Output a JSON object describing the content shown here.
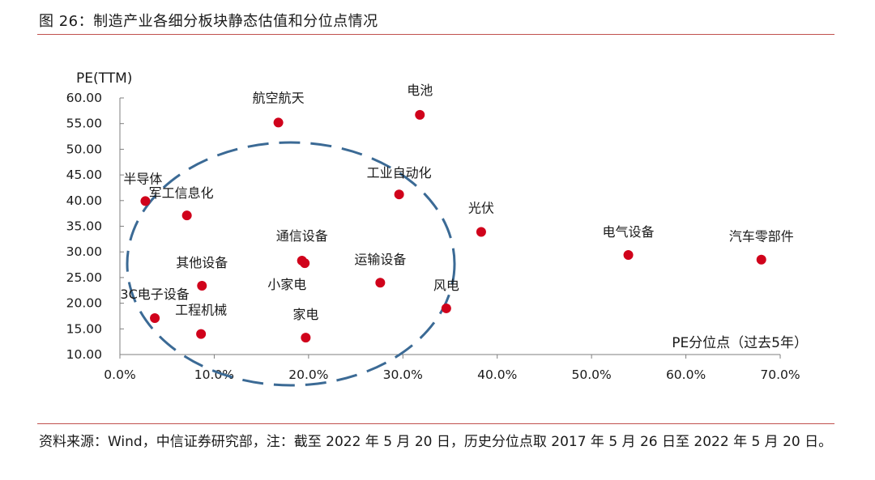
{
  "figure": {
    "title": "图 26：制造产业各细分板块静态估值和分位点情况",
    "source_note": "资料来源：Wind，中信证券研究部，注：截至 2022 年 5 月 20 日，历史分位点取 2017 年 5 月 26 日至 2022 年 5 月 20 日。"
  },
  "colors": {
    "point": "#d0021b",
    "ellipse": "#3b6a95",
    "rule": "#c0504d",
    "axis": "#7f7f7f"
  },
  "chart_data": {
    "type": "scatter",
    "xlabel": "PE分位点（过去5年）",
    "ylabel": "PE(TTM)",
    "xlim": [
      0,
      0.7
    ],
    "ylim": [
      10,
      60
    ],
    "x_ticks": [
      0.0,
      0.1,
      0.2,
      0.3,
      0.4,
      0.5,
      0.6,
      0.7
    ],
    "x_tick_labels": [
      "0.0%",
      "10.0%",
      "20.0%",
      "30.0%",
      "40.0%",
      "50.0%",
      "60.0%",
      "70.0%"
    ],
    "y_ticks": [
      10,
      15,
      20,
      25,
      30,
      35,
      40,
      45,
      50,
      55,
      60
    ],
    "y_tick_labels": [
      "10.00",
      "15.00",
      "20.00",
      "25.00",
      "30.00",
      "35.00",
      "40.00",
      "45.00",
      "50.00",
      "55.00",
      "60.00"
    ],
    "grid": false,
    "legend": "none",
    "annotation": "dashed ellipse around the cluster of sectors between ~1% and ~37% percentile",
    "points": [
      {
        "label": "航空航天",
        "x": 0.168,
        "y": 55.2
      },
      {
        "label": "电池",
        "x": 0.318,
        "y": 56.7
      },
      {
        "label": "半导体",
        "x": 0.027,
        "y": 39.9
      },
      {
        "label": "军工信息化",
        "x": 0.071,
        "y": 37.1
      },
      {
        "label": "工业自动化",
        "x": 0.296,
        "y": 41.2
      },
      {
        "label": "光伏",
        "x": 0.383,
        "y": 33.9
      },
      {
        "label": "电气设备",
        "x": 0.539,
        "y": 29.4
      },
      {
        "label": "汽车零部件",
        "x": 0.68,
        "y": 28.5
      },
      {
        "label": "通信设备",
        "x": 0.193,
        "y": 28.3
      },
      {
        "label": "小家电",
        "x": 0.196,
        "y": 27.8
      },
      {
        "label": "其他设备",
        "x": 0.087,
        "y": 23.4
      },
      {
        "label": "运输设备",
        "x": 0.276,
        "y": 24.0
      },
      {
        "label": "3C电子设备",
        "x": 0.037,
        "y": 17.1
      },
      {
        "label": "工程机械",
        "x": 0.086,
        "y": 14.0
      },
      {
        "label": "家电",
        "x": 0.197,
        "y": 13.3
      },
      {
        "label": "风电",
        "x": 0.346,
        "y": 19.0
      }
    ]
  }
}
